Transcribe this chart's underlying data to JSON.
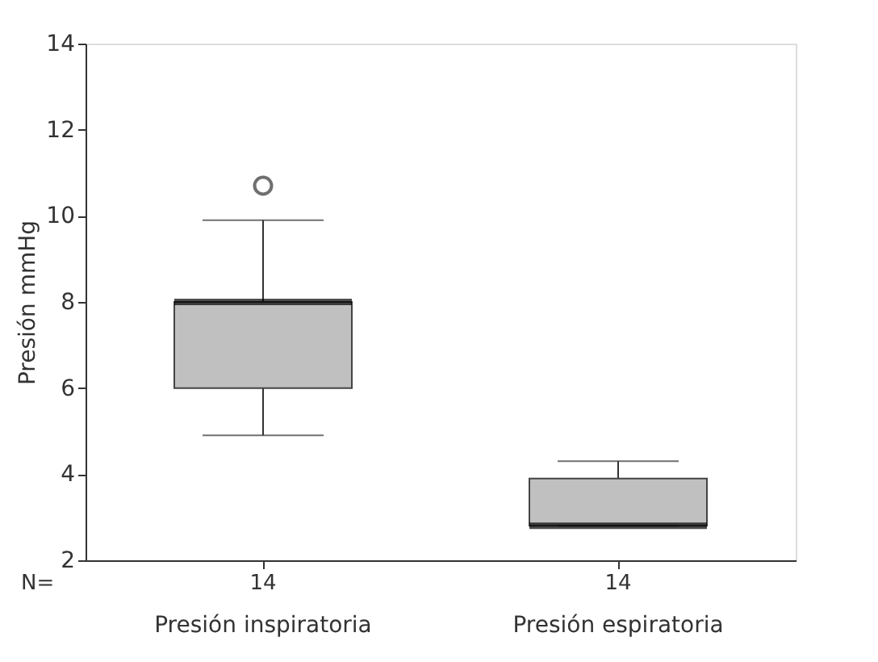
{
  "chart_data": {
    "type": "box",
    "ylabel": "Presión mmHg",
    "categories": [
      "Presión inspiratoria",
      "Presión espiratoria"
    ],
    "boxes": [
      {
        "low": 4.9,
        "q1": 6.0,
        "median": 8.0,
        "q3": 8.0,
        "high": 9.9,
        "outliers": [
          10.7
        ]
      },
      {
        "low": 2.8,
        "q1": 2.8,
        "median": 2.8,
        "q3": 3.9,
        "high": 4.3
      }
    ],
    "color": "#c0c0c0",
    "ylim": [
      2,
      14
    ],
    "yticks": [
      2,
      4,
      6,
      8,
      10,
      12,
      14
    ],
    "grid": false,
    "annotations": [
      "N=",
      "14",
      "14"
    ]
  }
}
